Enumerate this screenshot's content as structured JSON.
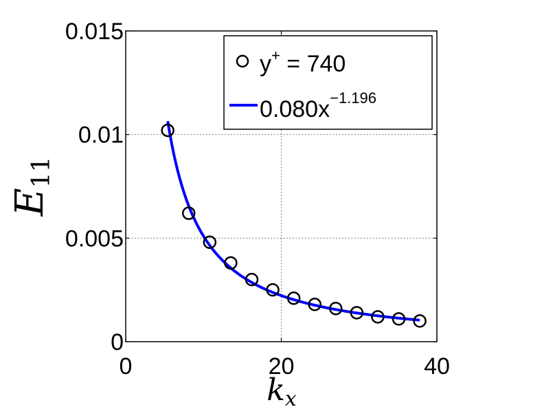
{
  "chart_data": {
    "type": "scatter",
    "xlabel": {
      "base": "k",
      "sub": "x"
    },
    "ylabel": {
      "base": "E",
      "sub": "11"
    },
    "xlim": [
      0,
      40
    ],
    "ylim": [
      0,
      0.015
    ],
    "xticks": [
      "0",
      "20",
      "40"
    ],
    "yticks": [
      "0",
      "0.005",
      "0.01",
      "0.015"
    ],
    "grid": true,
    "legend_position": "top-right",
    "series": [
      {
        "name_base": "y",
        "name_sup": "+",
        "name_rest": " = 740",
        "marker": "open-circle",
        "color": "#000000",
        "points": [
          [
            5.4,
            0.0102
          ],
          [
            8.1,
            0.0062
          ],
          [
            10.8,
            0.0048
          ],
          [
            13.5,
            0.0038
          ],
          [
            16.2,
            0.003
          ],
          [
            18.9,
            0.0025
          ],
          [
            21.6,
            0.0021
          ],
          [
            24.3,
            0.0018
          ],
          [
            27.0,
            0.0016
          ],
          [
            29.7,
            0.0014
          ],
          [
            32.4,
            0.0012
          ],
          [
            35.1,
            0.0011
          ],
          [
            37.8,
            0.001
          ]
        ]
      },
      {
        "name_base": "0.080x",
        "name_sup": "−1.196",
        "type": "line",
        "color": "#0000ff",
        "fit": {
          "a": 0.08,
          "b": -1.196,
          "x_start": 5.4,
          "x_end": 37.8
        }
      }
    ]
  }
}
